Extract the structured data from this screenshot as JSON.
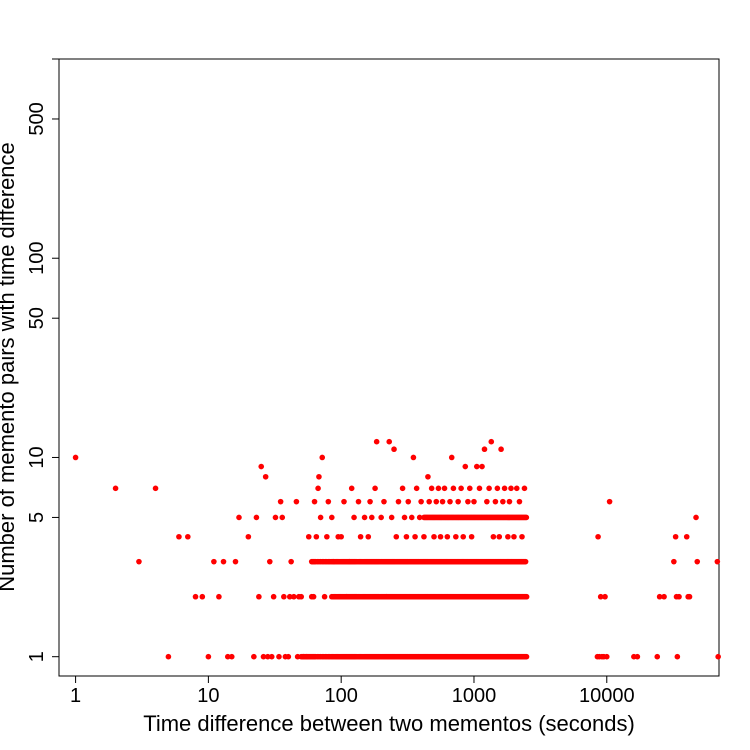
{
  "chart_data": {
    "type": "scatter",
    "title": "",
    "xlabel": "Time difference between two mementos (seconds)",
    "ylabel": "Number of memento pairs with time difference",
    "x_scale": "log",
    "y_scale": "log",
    "xlim": [
      0.75,
      70000
    ],
    "ylim": [
      0.8,
      1000
    ],
    "x_ticks": [
      1,
      10,
      100,
      1000,
      10000
    ],
    "x_tick_labels": [
      "1",
      "10",
      "100",
      "1000",
      "10000"
    ],
    "y_ticks": [
      1,
      5,
      10,
      50,
      100,
      500,
      1000
    ],
    "y_tick_labels": [
      "1",
      "5",
      "10",
      "50",
      "100",
      "500",
      ""
    ],
    "grid": false,
    "legend": "none",
    "point_color": "#ff0000",
    "dense_bands": [
      {
        "y": 1,
        "x_from": 50,
        "x_to": 2500
      },
      {
        "y": 2,
        "x_from": 85,
        "x_to": 2500
      },
      {
        "y": 3,
        "x_from": 60,
        "x_to": 2450
      },
      {
        "y": 5,
        "x_from": 420,
        "x_to": 2500
      }
    ],
    "points": [
      {
        "x": 1,
        "y": 10
      },
      {
        "x": 2,
        "y": 7
      },
      {
        "x": 3,
        "y": 3
      },
      {
        "x": 4,
        "y": 7
      },
      {
        "x": 5,
        "y": 1
      },
      {
        "x": 6,
        "y": 4
      },
      {
        "x": 7,
        "y": 4
      },
      {
        "x": 8,
        "y": 2
      },
      {
        "x": 9,
        "y": 2
      },
      {
        "x": 10,
        "y": 1
      },
      {
        "x": 11,
        "y": 3
      },
      {
        "x": 12,
        "y": 2
      },
      {
        "x": 13,
        "y": 3
      },
      {
        "x": 14,
        "y": 1
      },
      {
        "x": 15,
        "y": 1
      },
      {
        "x": 16,
        "y": 3
      },
      {
        "x": 17,
        "y": 5
      },
      {
        "x": 20,
        "y": 4
      },
      {
        "x": 22,
        "y": 1
      },
      {
        "x": 23,
        "y": 5
      },
      {
        "x": 24,
        "y": 2
      },
      {
        "x": 25,
        "y": 9
      },
      {
        "x": 26,
        "y": 1
      },
      {
        "x": 27,
        "y": 8
      },
      {
        "x": 28,
        "y": 1
      },
      {
        "x": 29,
        "y": 3
      },
      {
        "x": 30,
        "y": 1
      },
      {
        "x": 31,
        "y": 2
      },
      {
        "x": 32,
        "y": 5
      },
      {
        "x": 34,
        "y": 1
      },
      {
        "x": 35,
        "y": 6
      },
      {
        "x": 36,
        "y": 5
      },
      {
        "x": 37,
        "y": 2
      },
      {
        "x": 38,
        "y": 1
      },
      {
        "x": 40,
        "y": 1
      },
      {
        "x": 41,
        "y": 2
      },
      {
        "x": 42,
        "y": 3
      },
      {
        "x": 44,
        "y": 2
      },
      {
        "x": 46,
        "y": 6
      },
      {
        "x": 47,
        "y": 1
      },
      {
        "x": 48,
        "y": 2
      },
      {
        "x": 50,
        "y": 2
      },
      {
        "x": 52,
        "y": 1
      },
      {
        "x": 55,
        "y": 1
      },
      {
        "x": 57,
        "y": 4
      },
      {
        "x": 60,
        "y": 2
      },
      {
        "x": 62,
        "y": 2
      },
      {
        "x": 63,
        "y": 6
      },
      {
        "x": 65,
        "y": 4
      },
      {
        "x": 67,
        "y": 7
      },
      {
        "x": 68,
        "y": 8
      },
      {
        "x": 70,
        "y": 5
      },
      {
        "x": 72,
        "y": 10
      },
      {
        "x": 75,
        "y": 2
      },
      {
        "x": 78,
        "y": 4
      },
      {
        "x": 80,
        "y": 6
      },
      {
        "x": 85,
        "y": 5
      },
      {
        "x": 88,
        "y": 3
      },
      {
        "x": 95,
        "y": 4
      },
      {
        "x": 100,
        "y": 4
      },
      {
        "x": 105,
        "y": 6
      },
      {
        "x": 110,
        "y": 2
      },
      {
        "x": 115,
        "y": 3
      },
      {
        "x": 120,
        "y": 7
      },
      {
        "x": 125,
        "y": 5
      },
      {
        "x": 130,
        "y": 2
      },
      {
        "x": 135,
        "y": 6
      },
      {
        "x": 140,
        "y": 4
      },
      {
        "x": 150,
        "y": 5
      },
      {
        "x": 160,
        "y": 4
      },
      {
        "x": 165,
        "y": 6
      },
      {
        "x": 170,
        "y": 5
      },
      {
        "x": 180,
        "y": 7
      },
      {
        "x": 185,
        "y": 12
      },
      {
        "x": 200,
        "y": 5
      },
      {
        "x": 210,
        "y": 6
      },
      {
        "x": 220,
        "y": 2
      },
      {
        "x": 230,
        "y": 12
      },
      {
        "x": 240,
        "y": 5
      },
      {
        "x": 250,
        "y": 11
      },
      {
        "x": 260,
        "y": 4
      },
      {
        "x": 270,
        "y": 6
      },
      {
        "x": 290,
        "y": 7
      },
      {
        "x": 300,
        "y": 5
      },
      {
        "x": 310,
        "y": 4
      },
      {
        "x": 320,
        "y": 6
      },
      {
        "x": 340,
        "y": 5
      },
      {
        "x": 350,
        "y": 10
      },
      {
        "x": 360,
        "y": 4
      },
      {
        "x": 370,
        "y": 7
      },
      {
        "x": 390,
        "y": 5
      },
      {
        "x": 400,
        "y": 6
      },
      {
        "x": 420,
        "y": 4
      },
      {
        "x": 450,
        "y": 8
      },
      {
        "x": 460,
        "y": 6
      },
      {
        "x": 480,
        "y": 7
      },
      {
        "x": 500,
        "y": 4
      },
      {
        "x": 520,
        "y": 6
      },
      {
        "x": 540,
        "y": 7
      },
      {
        "x": 560,
        "y": 4
      },
      {
        "x": 580,
        "y": 6
      },
      {
        "x": 600,
        "y": 7
      },
      {
        "x": 630,
        "y": 4
      },
      {
        "x": 660,
        "y": 6
      },
      {
        "x": 680,
        "y": 10
      },
      {
        "x": 700,
        "y": 7
      },
      {
        "x": 730,
        "y": 4
      },
      {
        "x": 760,
        "y": 6
      },
      {
        "x": 800,
        "y": 7
      },
      {
        "x": 830,
        "y": 4
      },
      {
        "x": 860,
        "y": 9
      },
      {
        "x": 900,
        "y": 6
      },
      {
        "x": 930,
        "y": 7
      },
      {
        "x": 960,
        "y": 4
      },
      {
        "x": 1000,
        "y": 6
      },
      {
        "x": 1050,
        "y": 9
      },
      {
        "x": 1100,
        "y": 7
      },
      {
        "x": 1150,
        "y": 9
      },
      {
        "x": 1200,
        "y": 11
      },
      {
        "x": 1250,
        "y": 6
      },
      {
        "x": 1300,
        "y": 7
      },
      {
        "x": 1350,
        "y": 12
      },
      {
        "x": 1400,
        "y": 4
      },
      {
        "x": 1450,
        "y": 6
      },
      {
        "x": 1500,
        "y": 7
      },
      {
        "x": 1550,
        "y": 4
      },
      {
        "x": 1600,
        "y": 11
      },
      {
        "x": 1650,
        "y": 6
      },
      {
        "x": 1700,
        "y": 7
      },
      {
        "x": 1800,
        "y": 4
      },
      {
        "x": 1850,
        "y": 6
      },
      {
        "x": 1900,
        "y": 7
      },
      {
        "x": 2000,
        "y": 4
      },
      {
        "x": 2100,
        "y": 7
      },
      {
        "x": 2200,
        "y": 6
      },
      {
        "x": 2300,
        "y": 4
      },
      {
        "x": 2400,
        "y": 7
      },
      {
        "x": 8500,
        "y": 1
      },
      {
        "x": 8600,
        "y": 4
      },
      {
        "x": 8800,
        "y": 1
      },
      {
        "x": 9000,
        "y": 2
      },
      {
        "x": 9200,
        "y": 1
      },
      {
        "x": 9500,
        "y": 1
      },
      {
        "x": 9700,
        "y": 2
      },
      {
        "x": 10000,
        "y": 1
      },
      {
        "x": 10500,
        "y": 6
      },
      {
        "x": 16000,
        "y": 1
      },
      {
        "x": 17000,
        "y": 1
      },
      {
        "x": 24000,
        "y": 1
      },
      {
        "x": 25000,
        "y": 2
      },
      {
        "x": 27000,
        "y": 2
      },
      {
        "x": 32000,
        "y": 3
      },
      {
        "x": 33000,
        "y": 4
      },
      {
        "x": 33500,
        "y": 2
      },
      {
        "x": 34000,
        "y": 1
      },
      {
        "x": 35000,
        "y": 2
      },
      {
        "x": 40000,
        "y": 4
      },
      {
        "x": 41000,
        "y": 2
      },
      {
        "x": 42000,
        "y": 2
      },
      {
        "x": 47000,
        "y": 5
      },
      {
        "x": 48000,
        "y": 3
      },
      {
        "x": 68000,
        "y": 3
      },
      {
        "x": 69000,
        "y": 1
      }
    ]
  }
}
